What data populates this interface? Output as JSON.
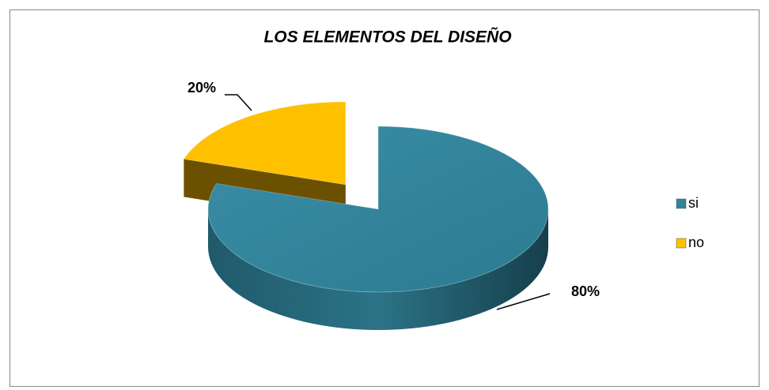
{
  "chart_data": {
    "type": "pie",
    "title": "LOS ELEMENTOS DEL DISEÑO",
    "categories": [
      "si",
      "no"
    ],
    "values": [
      80,
      20
    ],
    "value_labels": [
      "80%",
      "20%"
    ],
    "colors": [
      "#31849b",
      "#ffc000"
    ],
    "legend": "right",
    "exploded": [
      false,
      true
    ]
  }
}
